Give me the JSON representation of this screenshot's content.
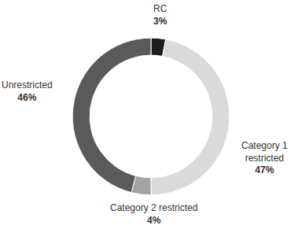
{
  "chart_data": {
    "type": "pie",
    "categories": [
      "RC",
      "Category 1 restricted",
      "Category 2 restricted",
      "Unrestricted"
    ],
    "values": [
      3,
      47,
      4,
      46
    ],
    "value_labels": [
      "3%",
      "47%",
      "4%",
      "46%"
    ],
    "colors": [
      "#1c1c1c",
      "#dadada",
      "#a3a3a3",
      "#5a5a5a"
    ],
    "data_labels": true
  }
}
